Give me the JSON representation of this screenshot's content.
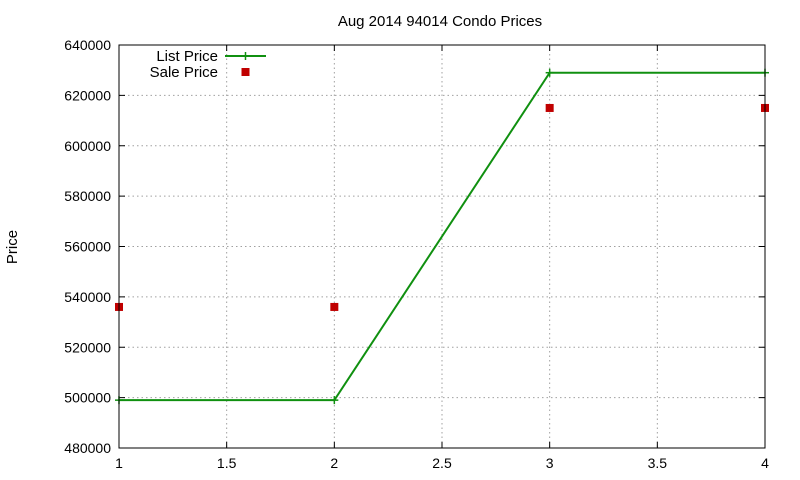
{
  "chart_data": {
    "type": "line",
    "title": "Aug 2014 94014 Condo Prices",
    "xlabel": "",
    "ylabel": "Price",
    "xlim": [
      1,
      4
    ],
    "ylim": [
      480000,
      640000
    ],
    "x_ticks": [
      "1",
      "1.5",
      "2",
      "2.5",
      "3",
      "3.5",
      "4"
    ],
    "y_ticks": [
      "480000",
      "500000",
      "520000",
      "540000",
      "560000",
      "580000",
      "600000",
      "620000",
      "640000"
    ],
    "grid": true,
    "legend_position": "top-left",
    "series": [
      {
        "name": "List Price",
        "style": "linespoints",
        "marker": "plus",
        "color": "#109010",
        "x": [
          1,
          2,
          3,
          4
        ],
        "y": [
          499000,
          499000,
          629000,
          629000
        ]
      },
      {
        "name": "Sale Price",
        "style": "points",
        "marker": "square",
        "color": "#c00000",
        "x": [
          1,
          2,
          3,
          4
        ],
        "y": [
          536000,
          536000,
          615000,
          615000
        ]
      }
    ]
  }
}
